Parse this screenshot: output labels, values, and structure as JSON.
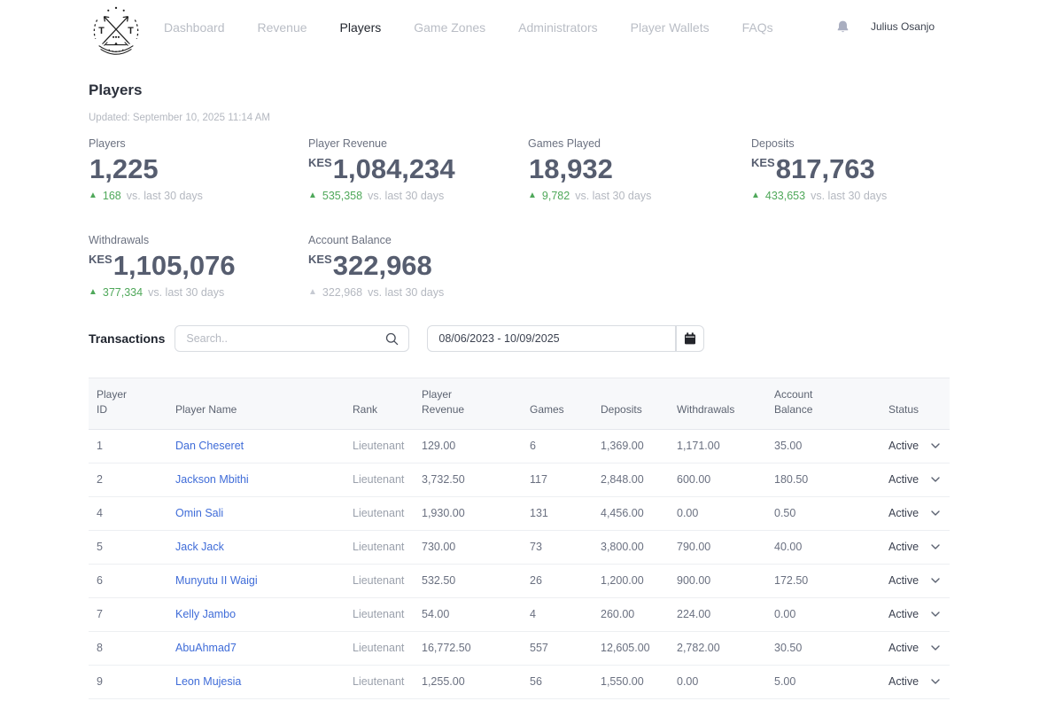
{
  "nav": {
    "items": [
      {
        "label": "Dashboard",
        "active": false
      },
      {
        "label": "Revenue",
        "active": false
      },
      {
        "label": "Players",
        "active": true
      },
      {
        "label": "Game Zones",
        "active": false
      },
      {
        "label": "Administrators",
        "active": false
      },
      {
        "label": "Player Wallets",
        "active": false
      },
      {
        "label": "FAQs",
        "active": false
      }
    ],
    "user_name": "Julius Osanjo"
  },
  "page": {
    "title": "Players",
    "updated": "Updated: September 10, 2025 11:14 AM"
  },
  "stats": [
    {
      "label": "Players",
      "currency": "",
      "value": "1,225",
      "delta": "168",
      "suffix": "vs. last 30 days",
      "trend": "up"
    },
    {
      "label": "Player Revenue",
      "currency": "KES",
      "value": "1,084,234",
      "delta": "535,358",
      "suffix": "vs. last 30 days",
      "trend": "up"
    },
    {
      "label": "Games Played",
      "currency": "",
      "value": "18,932",
      "delta": "9,782",
      "suffix": "vs. last 30 days",
      "trend": "up"
    },
    {
      "label": "Deposits",
      "currency": "KES",
      "value": "817,763",
      "delta": "433,653",
      "suffix": "vs. last 30 days",
      "trend": "up"
    },
    {
      "label": "Withdrawals",
      "currency": "KES",
      "value": "1,105,076",
      "delta": "377,334",
      "suffix": "vs. last 30 days",
      "trend": "up"
    },
    {
      "label": "Account Balance",
      "currency": "KES",
      "value": "322,968",
      "delta": "322,968",
      "suffix": "vs. last 30 days",
      "trend": "neutral"
    }
  ],
  "transactions": {
    "section_label": "Transactions",
    "search_placeholder": "Search..",
    "date_range_value": "08/06/2023 - 10/09/2025"
  },
  "table": {
    "columns": [
      "Player ID",
      "Player Name",
      "Rank",
      "Player Revenue",
      "Games",
      "Deposits",
      "Withdrawals",
      "Account Balance",
      "Status"
    ],
    "rows": [
      {
        "id": "1",
        "name": "Dan Cheseret",
        "rank": "Lieutenant",
        "revenue": "129.00",
        "games": "6",
        "deposits": "1,369.00",
        "withdrawals": "1,171.00",
        "balance": "35.00",
        "status": "Active"
      },
      {
        "id": "2",
        "name": "Jackson Mbithi",
        "rank": "Lieutenant",
        "revenue": "3,732.50",
        "games": "117",
        "deposits": "2,848.00",
        "withdrawals": "600.00",
        "balance": "180.50",
        "status": "Active"
      },
      {
        "id": "4",
        "name": "Omin Sali",
        "rank": "Lieutenant",
        "revenue": "1,930.00",
        "games": "131",
        "deposits": "4,456.00",
        "withdrawals": "0.00",
        "balance": "0.50",
        "status": "Active"
      },
      {
        "id": "5",
        "name": "Jack Jack",
        "rank": "Lieutenant",
        "revenue": "730.00",
        "games": "73",
        "deposits": "3,800.00",
        "withdrawals": "790.00",
        "balance": "40.00",
        "status": "Active"
      },
      {
        "id": "6",
        "name": "Munyutu II Waigi",
        "rank": "Lieutenant",
        "revenue": "532.50",
        "games": "26",
        "deposits": "1,200.00",
        "withdrawals": "900.00",
        "balance": "172.50",
        "status": "Active"
      },
      {
        "id": "7",
        "name": "Kelly Jambo",
        "rank": "Lieutenant",
        "revenue": "54.00",
        "games": "4",
        "deposits": "260.00",
        "withdrawals": "224.00",
        "balance": "0.00",
        "status": "Active"
      },
      {
        "id": "8",
        "name": "AbuAhmad7",
        "rank": "Lieutenant",
        "revenue": "16,772.50",
        "games": "557",
        "deposits": "12,605.00",
        "withdrawals": "2,782.00",
        "balance": "30.50",
        "status": "Active"
      },
      {
        "id": "9",
        "name": "Leon Mujesia",
        "rank": "Lieutenant",
        "revenue": "1,255.00",
        "games": "56",
        "deposits": "1,550.00",
        "withdrawals": "0.00",
        "balance": "5.00",
        "status": "Active"
      }
    ]
  },
  "icons": {
    "notifications": "bell-icon",
    "search": "search-icon",
    "calendar": "calendar-icon",
    "status_dropdown": "chevron-down-icon",
    "trend_up_glyph": "▲"
  },
  "colors": {
    "link_blue": "#3f6cd8",
    "trend_green": "#4fa85a",
    "neutral_gray": "#b4b8c0",
    "heading_dark": "#2c313c",
    "stat_number": "#565d6f"
  }
}
